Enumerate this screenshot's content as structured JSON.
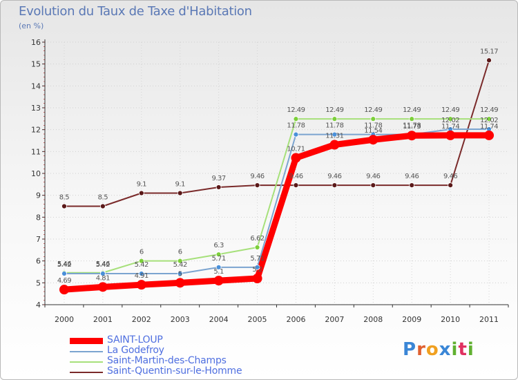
{
  "title": "Evolution du Taux de Taxe d'Habitation",
  "subtitle": "(en %)",
  "logo": {
    "letters": [
      "P",
      "r",
      "o",
      "x",
      "i",
      "t",
      "i"
    ],
    "colors": [
      "#3a86d6",
      "#e06030",
      "#f0a020",
      "#3a86d6",
      "#60b030",
      "#e03060",
      "#60b030"
    ]
  },
  "chart_data": {
    "type": "line",
    "categories": [
      "2000",
      "2001",
      "2002",
      "2003",
      "2004",
      "2005",
      "2006",
      "2007",
      "2008",
      "2009",
      "2010",
      "2011"
    ],
    "yticks": [
      "4",
      "5",
      "6",
      "7",
      "8",
      "9",
      "10",
      "11",
      "12",
      "13",
      "14",
      "15",
      "16"
    ],
    "ylim": [
      4,
      16
    ],
    "series": [
      {
        "name": "SAINT-LOUP",
        "color": "#ff0000",
        "width": 9,
        "marker": 7,
        "values": [
          4.69,
          4.81,
          4.91,
          5,
          5.1,
          5.2,
          10.71,
          11.31,
          11.54,
          11.73,
          11.74,
          11.74
        ],
        "labels": [
          "4.69",
          "4.81",
          "4.91",
          "5",
          "5.1",
          "5.2",
          "10.71",
          "11.31",
          "11.54",
          "11.73",
          "11.74",
          "11.74"
        ]
      },
      {
        "name": "La Godefroy",
        "color": "#7ba4d0",
        "width": 2,
        "marker": 3.5,
        "values": [
          5.42,
          5.42,
          5.42,
          5.42,
          5.71,
          5.71,
          11.78,
          11.78,
          11.78,
          11.78,
          12.02,
          12.02
        ],
        "labels": [
          "5.42",
          "5.42",
          "5.42",
          "5.42",
          "5.71",
          "5.71",
          "11.78",
          "11.78",
          "11.78",
          "11.78",
          "12.02",
          "12.02"
        ]
      },
      {
        "name": "Saint-Martin-des-Champs",
        "color": "#a6e07a",
        "width": 2,
        "marker": 3.5,
        "values": [
          5.46,
          5.46,
          6,
          6,
          6.3,
          6.62,
          12.49,
          12.49,
          12.49,
          12.49,
          12.49,
          12.49
        ],
        "labels": [
          "5.46",
          "5.46",
          "6",
          "6",
          "6.3",
          "6.62",
          "12.49",
          "12.49",
          "12.49",
          "12.49",
          "12.49",
          "12.49"
        ]
      },
      {
        "name": "Saint-Quentin-sur-le-Homme",
        "color": "#7a2a2a",
        "width": 2,
        "marker": 3.5,
        "values": [
          8.5,
          8.5,
          9.1,
          9.1,
          9.37,
          9.46,
          9.46,
          9.46,
          9.46,
          9.46,
          9.46,
          15.17
        ],
        "labels": [
          "8.5",
          "8.5",
          "9.1",
          "9.1",
          "9.37",
          "9.46",
          "9.46",
          "9.46",
          "9.46",
          "9.46",
          "9.46",
          "15.17"
        ]
      }
    ]
  }
}
